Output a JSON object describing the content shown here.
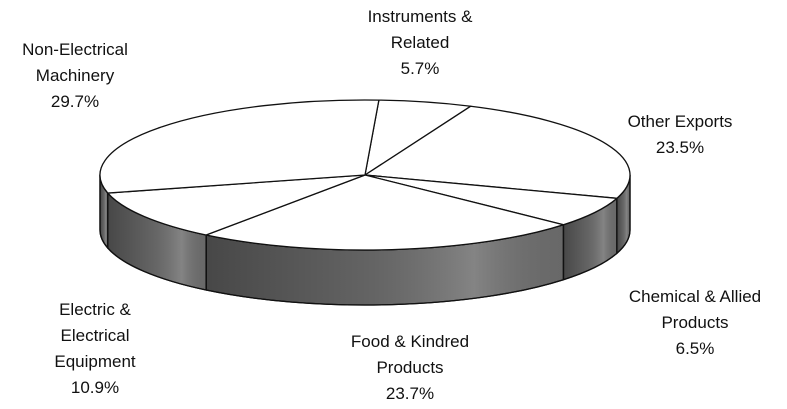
{
  "chart_data": {
    "type": "pie",
    "categories": [
      "Instruments &\nRelated",
      "Other Exports",
      "Chemical & Allied\nProducts",
      "Food & Kindred\nProducts",
      "Electric &\nElectrical\nEquipment",
      "Non-Electrical\nMachinery"
    ],
    "values": [
      5.7,
      23.5,
      6.5,
      23.7,
      10.9,
      29.7
    ],
    "value_labels": [
      "5.7%",
      "23.5%",
      "6.5%",
      "23.7%",
      "10.9%",
      "29.7%"
    ],
    "colors": [
      "#ffffff",
      "#ffffff",
      "#ffffff",
      "#ffffff",
      "#ffffff",
      "#ffffff"
    ],
    "side_color": "#6e6e6e"
  }
}
